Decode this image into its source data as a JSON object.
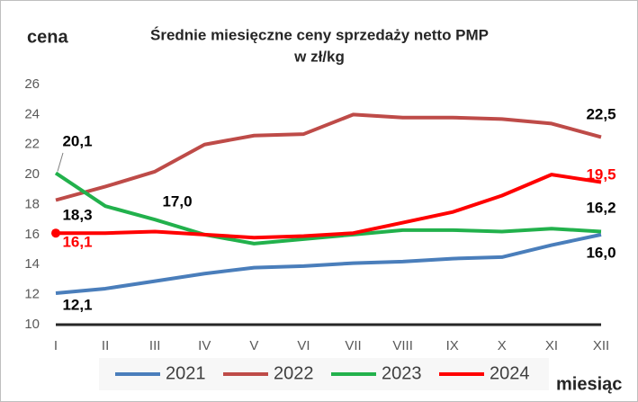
{
  "chart_data": {
    "type": "line",
    "title": "Średnie miesięczne ceny sprzedaży netto PMP",
    "subtitle": "w zł/kg",
    "y_label": "cena",
    "x_label": "miesiąc",
    "categories": [
      "I",
      "II",
      "III",
      "IV",
      "V",
      "VI",
      "VII",
      "VIII",
      "IX",
      "X",
      "XI",
      "XII"
    ],
    "ylim": [
      10,
      26
    ],
    "yticks": [
      10,
      12,
      14,
      16,
      18,
      20,
      22,
      24,
      26
    ],
    "series": [
      {
        "name": "2021",
        "color": "#4a7ebb",
        "values": [
          12.1,
          12.4,
          12.9,
          13.4,
          13.8,
          13.9,
          14.1,
          14.2,
          14.4,
          14.5,
          15.3,
          16.0
        ],
        "value_labels": [
          "12,1",
          null,
          null,
          null,
          null,
          null,
          null,
          null,
          null,
          null,
          null,
          "16,0"
        ]
      },
      {
        "name": "2022",
        "color": "#be4b48",
        "values": [
          18.3,
          19.2,
          20.2,
          22.0,
          22.6,
          22.7,
          24.0,
          23.8,
          23.8,
          23.7,
          23.4,
          22.5
        ],
        "value_labels": [
          "18,3",
          null,
          null,
          null,
          null,
          null,
          null,
          null,
          null,
          null,
          null,
          "22,5"
        ]
      },
      {
        "name": "2023",
        "color": "#22b14c",
        "values": [
          20.1,
          17.9,
          17.0,
          16.0,
          15.4,
          15.7,
          16.0,
          16.3,
          16.3,
          16.2,
          16.4,
          16.2
        ],
        "value_labels": [
          "20,1",
          null,
          "17,0",
          null,
          null,
          null,
          null,
          null,
          null,
          null,
          null,
          "16,2"
        ]
      },
      {
        "name": "2024",
        "color": "#ff0000",
        "values": [
          16.1,
          16.1,
          16.2,
          16.0,
          15.8,
          15.9,
          16.1,
          16.8,
          17.5,
          18.6,
          20.0,
          19.5
        ],
        "value_labels": [
          "16,1",
          null,
          null,
          null,
          null,
          null,
          null,
          null,
          null,
          null,
          null,
          "19,5"
        ]
      }
    ]
  }
}
